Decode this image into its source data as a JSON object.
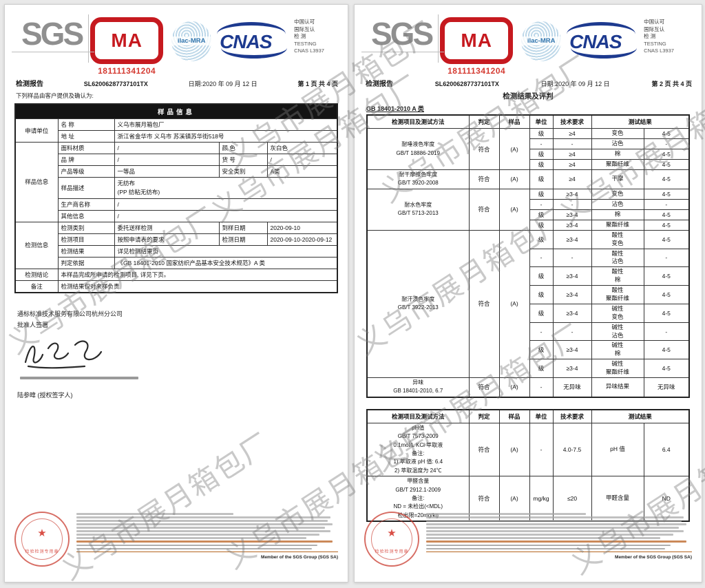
{
  "watermark": {
    "text": "义乌市展月箱包厂",
    "text2": "义乌市展月箱包厂义乌市展月箱包厂"
  },
  "logos": {
    "sgs": "SGS",
    "cma_letters": "MA",
    "cma_number": "181111341204",
    "ilac": "ilac-MRA",
    "cnas": "CNAS",
    "cnas_side_1": "中国认可",
    "cnas_side_2": "国际互认",
    "cnas_side_3": "检 测",
    "cnas_side_4": "TESTING",
    "cnas_side_5": "CNAS L3937"
  },
  "header": {
    "report_label": "检测报告",
    "report_no": "SL62006287737101TX",
    "date": "日期:2020 年 09 月 12 日",
    "page1": "第 1 页 共 4 页",
    "page2": "第 2 页 共 4 页"
  },
  "page1": {
    "intro": "下列样品由客户提供及确认为:",
    "table": {
      "band": "样品信息",
      "applicant": "申请单位",
      "name_k": "名  称",
      "name_v": "义乌市展月箱包厂",
      "addr_k": "地  址",
      "addr_v": "浙江省金华市 义乌市 苏溪镇苏华街518号",
      "sample_sec": "样品信息",
      "material_k": "面料材质",
      "material_v": "/",
      "color_k": "颜  色",
      "color_v": "灰白色",
      "brand_k": "品  牌",
      "brand_v": "/",
      "art_k": "货  号",
      "art_v": "/",
      "grade_k": "产品等级",
      "grade_v": "一等品",
      "safety_k": "安全类别",
      "safety_v": "A类",
      "desc_k": "样品描述",
      "desc_v": "无纺布\n(PP 纺粘无纺布)",
      "producer_k": "生产商名称",
      "producer_v": "/",
      "other_k": "其他信息",
      "other_v": "/",
      "test_sec": "检测信息",
      "cat_k": "检测类别",
      "cat_v": "委托送样检测",
      "arrive_k": "到样日期",
      "arrive_v": "2020-09-10",
      "item_k": "检测项目",
      "item_v": "按照申请表的要求",
      "date_k": "检测日期",
      "date_v": "2020-09-10-2020-09-12",
      "result_k": "检测结果",
      "result_v": "详见检测结果页",
      "basis_k": "判定依据",
      "basis_v": "《GB 18401-2010 国家纺织产品基本安全技术规范》A 类",
      "conclusion_k": "检测结论",
      "conclusion_v": "本样品完成所申请的检测项目, 详见下页。",
      "remark_k": "备注",
      "remark_v": "检测结果仅对来样负责"
    },
    "company": "通标标准技术服务有限公司杭州分公司",
    "approver_label": "批准人签署",
    "signer": "陆参暐 (授权签字人)"
  },
  "page2": {
    "title": "检测结果及评判",
    "standard": "GB 18401-2010 A 类",
    "headers": [
      "检测项目及测试方法",
      "判定",
      "样品",
      "单位",
      "技术要求",
      "测试结果"
    ],
    "table1": [
      {
        "item": "耐唾液色牢度\nGB/T 18886-2019",
        "verdict": "符合",
        "sample": "(A)",
        "rows": [
          {
            "unit": "级",
            "req": "≥4",
            "name": "变色",
            "result": "4-5"
          },
          {
            "unit": "-",
            "req": "-",
            "name": "沾色",
            "result": "-"
          },
          {
            "unit": "级",
            "req": "≥4",
            "name": "棉",
            "result": "4-5"
          },
          {
            "unit": "级",
            "req": "≥4",
            "name": "聚酯纤维",
            "result": "4-5"
          }
        ]
      },
      {
        "item": "耐干摩擦色牢度\nGB/T 3920-2008",
        "verdict": "符合",
        "sample": "(A)",
        "rows": [
          {
            "unit": "级",
            "req": "≥4",
            "name": "干摩",
            "result": "4-5"
          }
        ]
      },
      {
        "item": "耐水色牢度\nGB/T 5713-2013",
        "verdict": "符合",
        "sample": "(A)",
        "rows": [
          {
            "unit": "级",
            "req": "≥3-4",
            "name": "变色",
            "result": "4-5"
          },
          {
            "unit": "-",
            "req": "-",
            "name": "沾色",
            "result": "-"
          },
          {
            "unit": "级",
            "req": "≥3-4",
            "name": "棉",
            "result": "4-5"
          },
          {
            "unit": "级",
            "req": "≥3-4",
            "name": "聚酯纤维",
            "result": "4-5"
          }
        ]
      },
      {
        "item": "耐汗渍色牢度\nGB/T 3922-2013",
        "verdict": "符合",
        "sample": "(A)",
        "rows": [
          {
            "unit": "级",
            "req": "≥3-4",
            "name": "酸性\n变色",
            "result": "4-5"
          },
          {
            "unit": "-",
            "req": "-",
            "name": "酸性\n沾色",
            "result": "-"
          },
          {
            "unit": "级",
            "req": "≥3-4",
            "name": "酸性\n棉",
            "result": "4-5"
          },
          {
            "unit": "级",
            "req": "≥3-4",
            "name": "酸性\n聚酯纤维",
            "result": "4-5"
          },
          {
            "unit": "级",
            "req": "≥3-4",
            "name": "碱性\n变色",
            "result": "4-5"
          },
          {
            "unit": "-",
            "req": "-",
            "name": "碱性\n沾色",
            "result": "-"
          },
          {
            "unit": "级",
            "req": "≥3-4",
            "name": "碱性\n棉",
            "result": "4-5"
          },
          {
            "unit": "级",
            "req": "≥3-4",
            "name": "碱性\n聚酯纤维",
            "result": "4-5"
          }
        ]
      },
      {
        "item": "异味\nGB 18401-2010, 6.7",
        "verdict": "符合",
        "sample": "(A)",
        "rows": [
          {
            "unit": "-",
            "req": "无异味",
            "name": "异味结果",
            "result": "无异味"
          }
        ]
      }
    ],
    "table2": [
      {
        "item": "pH值\nGB/T 7573-2009\n0.1mol/L KCl 萃取液\n备注:\n1) 萃取液 pH 值: 6.4\n2) 萃取温度为 24℃",
        "verdict": "符合",
        "sample": "(A)",
        "rows": [
          {
            "unit": "-",
            "req": "4.0-7.5",
            "name": "pH 值",
            "result": "6.4"
          }
        ]
      },
      {
        "item": "甲醛含量\nGB/T 2912.1-2009\n备注:\nND = 未检出(<MDL)\n检出限=20mg/kg",
        "verdict": "符合",
        "sample": "(A)",
        "rows": [
          {
            "unit": "mg/kg",
            "req": "≤20",
            "name": "甲醛含量",
            "result": "ND"
          }
        ]
      }
    ]
  },
  "footer": {
    "stamp_text": "检验检测专用章",
    "member": "Member of the SGS Group (SGS SA)"
  }
}
